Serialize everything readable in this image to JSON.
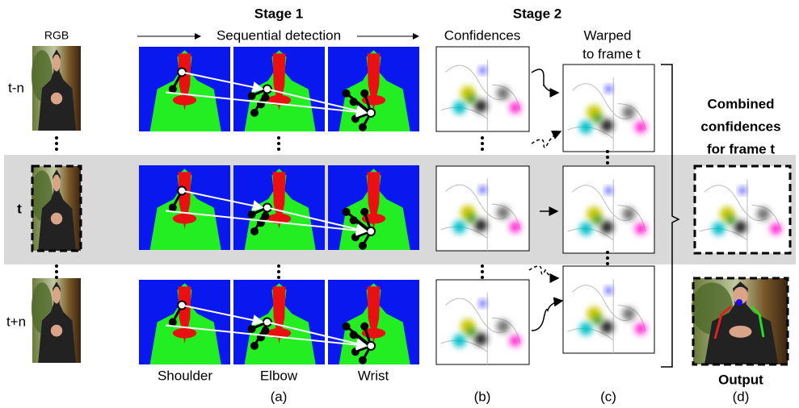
{
  "header": {
    "stage1": "Stage 1",
    "stage2": "Stage 2"
  },
  "columns": {
    "rgb": "RGB",
    "sequential": "Sequential detection",
    "confidences": "Confidences",
    "warped": [
      "Warped",
      "to frame t"
    ]
  },
  "rows": [
    "t-n",
    "t",
    "t+n"
  ],
  "combined": [
    "Combined",
    "confidences",
    "for frame t"
  ],
  "output": "Output",
  "joints": [
    "Shoulder",
    "Elbow",
    "Wrist"
  ],
  "captions": [
    "(a)",
    "(b)",
    "(c)",
    "(d)"
  ]
}
